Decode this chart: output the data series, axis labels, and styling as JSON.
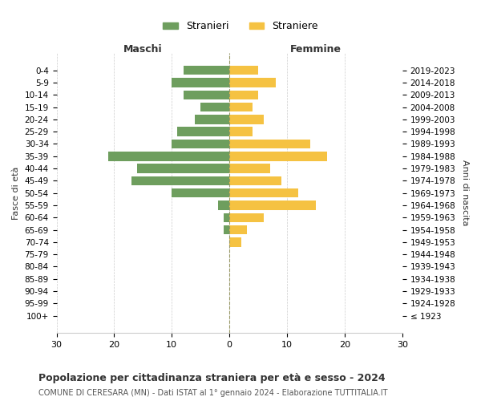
{
  "age_groups": [
    "100+",
    "95-99",
    "90-94",
    "85-89",
    "80-84",
    "75-79",
    "70-74",
    "65-69",
    "60-64",
    "55-59",
    "50-54",
    "45-49",
    "40-44",
    "35-39",
    "30-34",
    "25-29",
    "20-24",
    "15-19",
    "10-14",
    "5-9",
    "0-4"
  ],
  "birth_years": [
    "≤ 1923",
    "1924-1928",
    "1929-1933",
    "1934-1938",
    "1939-1943",
    "1944-1948",
    "1949-1953",
    "1954-1958",
    "1959-1963",
    "1964-1968",
    "1969-1973",
    "1974-1978",
    "1979-1983",
    "1984-1988",
    "1989-1993",
    "1994-1998",
    "1999-2003",
    "2004-2008",
    "2009-2013",
    "2014-2018",
    "2019-2023"
  ],
  "maschi": [
    0,
    0,
    0,
    0,
    0,
    0,
    0,
    1,
    1,
    2,
    10,
    17,
    16,
    21,
    10,
    9,
    6,
    5,
    8,
    10,
    8
  ],
  "femmine": [
    0,
    0,
    0,
    0,
    0,
    0,
    2,
    3,
    6,
    15,
    12,
    9,
    7,
    17,
    14,
    4,
    6,
    4,
    5,
    8,
    5
  ],
  "maschi_color": "#6e9e5e",
  "femmine_color": "#f5c242",
  "background_color": "#ffffff",
  "grid_color": "#cccccc",
  "title": "Popolazione per cittadinanza straniera per età e sesso - 2024",
  "subtitle": "COMUNE DI CERESARA (MN) - Dati ISTAT al 1° gennaio 2024 - Elaborazione TUTTITALIA.IT",
  "xlabel_left": "Maschi",
  "xlabel_right": "Femmine",
  "ylabel_left": "Fasce di età",
  "ylabel_right": "Anni di nascita",
  "legend_stranieri": "Stranieri",
  "legend_straniere": "Straniere",
  "xlim": 30
}
